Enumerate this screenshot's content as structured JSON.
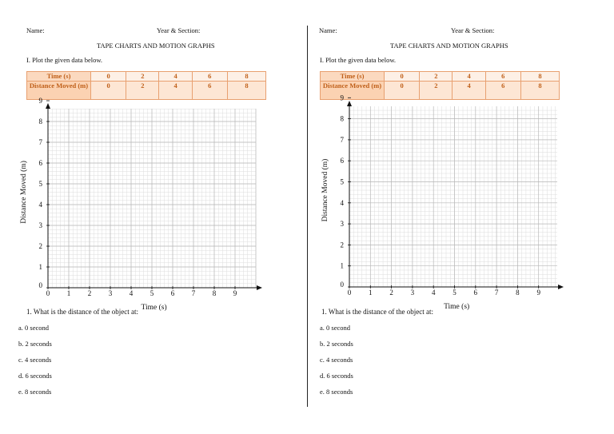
{
  "sheet": {
    "name_label": "Name:",
    "year_section_label": "Year & Section:",
    "title": "TAPE CHARTS AND MOTION GRAPHS",
    "instruction": "I. Plot the given data below.",
    "table": {
      "row_headers": [
        "Time (s)",
        "Distance Moved (m)"
      ],
      "time_values": [
        "0",
        "2",
        "4",
        "6",
        "8"
      ],
      "distance_values": [
        "0",
        "2",
        "4",
        "6",
        "8"
      ]
    },
    "graph": {
      "x_label": "Time (s)",
      "y_label": "Distance Moved (m)",
      "x_ticks": [
        "0",
        "1",
        "2",
        "3",
        "4",
        "5",
        "6",
        "7",
        "8",
        "9"
      ],
      "y_ticks": [
        "0",
        "1",
        "2",
        "3",
        "4",
        "5",
        "6",
        "7",
        "8",
        "9"
      ]
    },
    "question": "1. What is the distance of the object at:",
    "choices": [
      "a. 0 second",
      "b. 2 seconds",
      "c. 4 seconds",
      "d. 6 seconds",
      "e. 8 seconds"
    ]
  }
}
